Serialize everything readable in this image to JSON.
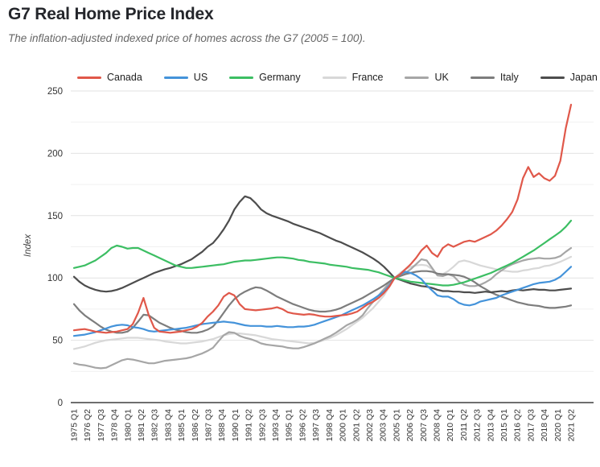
{
  "header": {
    "title": "G7 Real Home Price Index",
    "subtitle": "The inflation-adjusted indexed price of homes across the G7 (2005 = 100)."
  },
  "chart_data": {
    "type": "line",
    "title": "G7 Real Home Price Index",
    "subtitle": "The inflation-adjusted indexed price of homes across the G7 (2005 = 100).",
    "ylabel": "Index",
    "ylim": [
      0,
      250
    ],
    "y_ticks": [
      0,
      50,
      100,
      150,
      200,
      250
    ],
    "y_minor_gridlines": [
      25,
      75,
      125,
      175,
      225
    ],
    "grid": "on",
    "legend_position": "top",
    "x_start": "1975 Q1",
    "x_end": "2021 Q2",
    "x_total_quarters": 186,
    "x_tick_step_quarters": 5,
    "x_tick_labels": [
      "1975 Q1",
      "1976 Q2",
      "1977 Q3",
      "1978 Q4",
      "1980 Q1",
      "1981 Q2",
      "1982 Q3",
      "1983 Q4",
      "1985 Q1",
      "1986 Q2",
      "1987 Q3",
      "1988 Q4",
      "1990 Q1",
      "1991 Q2",
      "1992 Q3",
      "1993 Q4",
      "1995 Q1",
      "1996 Q2",
      "1997 Q3",
      "1998 Q4",
      "2000 Q1",
      "2001 Q2",
      "2002 Q3",
      "2003 Q4",
      "2005 Q1",
      "2006 Q2",
      "2007 Q3",
      "2008 Q4",
      "2010 Q1",
      "2011 Q2",
      "2012 Q3",
      "2013 Q4",
      "2015 Q1",
      "2016 Q2",
      "2017 Q3",
      "2018 Q4",
      "2020 Q1",
      "2021 Q2"
    ],
    "sample_note": "values sampled every 2 quarters from 1975 Q1, last value = 2021 Q2",
    "series": [
      {
        "name": "Canada",
        "color": "#e0584a",
        "values": [
          58,
          58.5,
          59,
          58,
          57,
          56.5,
          56,
          56.5,
          57,
          58,
          59,
          63,
          72,
          84,
          70,
          60,
          57,
          56.5,
          56,
          56.5,
          57,
          58,
          59,
          61,
          64,
          69,
          73,
          78,
          85,
          88,
          86,
          79,
          75,
          74.5,
          74,
          74.5,
          75,
          75.5,
          76.5,
          75,
          72.5,
          71.5,
          71,
          70.5,
          71,
          70.5,
          69.5,
          69,
          69,
          69.5,
          70,
          70.5,
          71.5,
          73,
          76,
          79,
          81,
          84,
          88,
          93,
          100,
          103,
          107,
          111,
          116,
          122,
          126,
          120,
          117,
          124,
          127,
          125,
          127,
          129,
          130,
          129,
          131,
          133,
          135,
          138,
          142,
          147,
          153,
          163,
          180,
          189,
          181,
          184,
          180,
          178,
          182,
          194,
          220,
          239
        ]
      },
      {
        "name": "US",
        "color": "#4493da",
        "values": [
          53.5,
          54,
          54.5,
          55.5,
          56.5,
          58,
          59.5,
          61,
          62,
          62.5,
          62,
          60.5,
          60,
          59,
          57.5,
          57,
          57.5,
          58,
          58.5,
          59,
          59.5,
          60,
          61,
          62,
          63,
          63.5,
          64,
          64.5,
          65,
          64.5,
          64,
          63,
          62,
          61.5,
          61.5,
          61.5,
          61,
          61,
          61.5,
          61,
          60.5,
          60.5,
          61,
          61,
          61.5,
          62.5,
          64,
          65.5,
          67,
          68.5,
          70,
          72,
          74,
          76,
          78,
          80.5,
          83,
          86,
          89,
          94,
          100,
          103,
          105,
          104,
          102,
          99,
          94,
          90,
          86,
          85,
          85,
          83,
          80,
          78.5,
          78,
          79,
          81,
          82,
          83,
          84,
          86,
          87.5,
          89,
          90.5,
          92,
          93.5,
          95,
          96,
          96.5,
          97,
          98.5,
          101,
          105,
          109
        ]
      },
      {
        "name": "Germany",
        "color": "#3cbe63",
        "values": [
          108,
          109,
          110,
          112,
          114,
          117,
          120,
          124,
          126,
          125,
          123.5,
          124,
          124,
          122,
          120,
          118,
          116,
          114,
          112,
          110,
          109,
          108,
          108,
          108.5,
          109,
          109.5,
          110,
          110.5,
          111,
          112,
          113,
          113.5,
          114,
          114,
          114.5,
          115,
          115.5,
          116,
          116.5,
          116.5,
          116,
          115.5,
          114.5,
          114,
          113,
          112.5,
          112,
          111.5,
          110.5,
          110,
          109.5,
          109,
          108,
          107.5,
          107,
          106.5,
          105.5,
          104.5,
          103,
          101.5,
          100,
          99,
          98,
          97,
          96.5,
          96,
          95.5,
          95,
          94.5,
          94,
          94,
          94.5,
          95.5,
          96.5,
          98,
          99.5,
          101,
          102.5,
          104,
          106,
          108,
          110,
          112,
          114.5,
          117,
          119.5,
          122,
          125,
          128,
          131,
          134,
          137,
          141,
          146
        ]
      },
      {
        "name": "France",
        "color": "#d8d8d8",
        "values": [
          43,
          44,
          45,
          46.5,
          48,
          49,
          50,
          50.5,
          51,
          51.5,
          52,
          52,
          52,
          51.5,
          51,
          50.5,
          50,
          49,
          48.5,
          48,
          47.5,
          47.5,
          48,
          48.5,
          49,
          50,
          51,
          52.5,
          54,
          55,
          55.5,
          55.5,
          55,
          54.5,
          54,
          53,
          52,
          51,
          50.5,
          50,
          49.5,
          49,
          48.5,
          48,
          47.5,
          48,
          49,
          50.5,
          52,
          54,
          56.5,
          59,
          62,
          65,
          68,
          72,
          76,
          81,
          86,
          93,
          100,
          104,
          107,
          109,
          110,
          110.5,
          110,
          107,
          103,
          103,
          105.5,
          109,
          113,
          114,
          113,
          111.5,
          110,
          109,
          108,
          107,
          106,
          105.5,
          105,
          105,
          106,
          106.5,
          107.5,
          108,
          109.5,
          110,
          111.5,
          113,
          115,
          117
        ]
      },
      {
        "name": "UK",
        "color": "#a6a6a6",
        "values": [
          31.5,
          30.5,
          30,
          29,
          28,
          27.5,
          28,
          30,
          32,
          34,
          35,
          34.5,
          33.5,
          32.5,
          31.5,
          31.5,
          32.5,
          33.5,
          34,
          34.5,
          35,
          35.5,
          36.5,
          38,
          39.5,
          41.5,
          44,
          49,
          54,
          56.5,
          56,
          53.5,
          52,
          51,
          49.5,
          47.5,
          46.5,
          46,
          45.5,
          45,
          44,
          43.5,
          43.5,
          44.5,
          46,
          47.5,
          49.5,
          51.5,
          53.5,
          56,
          59,
          62,
          64,
          66.5,
          70,
          76,
          81,
          86,
          91,
          96,
          100,
          102,
          104,
          107,
          111,
          115,
          114,
          108,
          102,
          101.5,
          103,
          101.5,
          97,
          94.5,
          93.5,
          93.5,
          94.5,
          96.5,
          99,
          103,
          106,
          109,
          111,
          112.5,
          114,
          115,
          115.5,
          116,
          115.5,
          115.5,
          116,
          117.5,
          121,
          124
        ]
      },
      {
        "name": "Italy",
        "color": "#7d7d7d",
        "values": [
          79,
          74,
          70,
          67,
          64,
          61,
          58.5,
          57,
          56,
          56,
          57,
          60,
          65,
          70.5,
          70,
          67,
          64,
          62,
          60,
          58.5,
          57.5,
          56.5,
          56,
          56,
          57,
          58.5,
          61,
          66,
          72,
          78,
          83,
          86.5,
          89,
          91,
          92.5,
          92,
          90,
          87.5,
          85,
          83,
          81,
          79,
          77.5,
          76,
          74.5,
          73.5,
          73,
          73,
          73.5,
          74.5,
          76,
          78,
          80,
          82,
          84,
          86.5,
          89,
          91.5,
          94,
          97,
          100,
          101.5,
          103,
          104,
          105,
          105.5,
          105.5,
          105,
          103.5,
          103,
          103,
          102.5,
          102,
          101,
          99,
          96.5,
          93.5,
          91,
          88.5,
          86.5,
          85,
          83.5,
          82,
          80.5,
          79.5,
          78.5,
          78,
          77.5,
          76.5,
          76,
          76,
          76.5,
          77,
          78
        ]
      },
      {
        "name": "Japan",
        "color": "#4d4d4d",
        "values": [
          101,
          97,
          94,
          92,
          90.5,
          89.5,
          89,
          89.5,
          90.5,
          92,
          94,
          96,
          98,
          100,
          102,
          104,
          105.5,
          107,
          108,
          109.5,
          111,
          113,
          115,
          118,
          121,
          125,
          128,
          133,
          139,
          146,
          155,
          161,
          165.5,
          164,
          160,
          155,
          152,
          150,
          148.5,
          147,
          145.5,
          143.5,
          142,
          140.5,
          139,
          137.5,
          136,
          134,
          132,
          130,
          128.5,
          126.5,
          124.5,
          122.5,
          120.5,
          118,
          115.5,
          112.5,
          109,
          104.5,
          100,
          98.5,
          97,
          95.5,
          94.5,
          93.5,
          93,
          92,
          90.5,
          89.5,
          89.5,
          89,
          89,
          88.5,
          88.5,
          88,
          88.5,
          89,
          88.5,
          89,
          89.5,
          89,
          90,
          90.5,
          90,
          90.5,
          91,
          90.5,
          90.5,
          90,
          90,
          90.5,
          91,
          91.5
        ]
      }
    ]
  }
}
